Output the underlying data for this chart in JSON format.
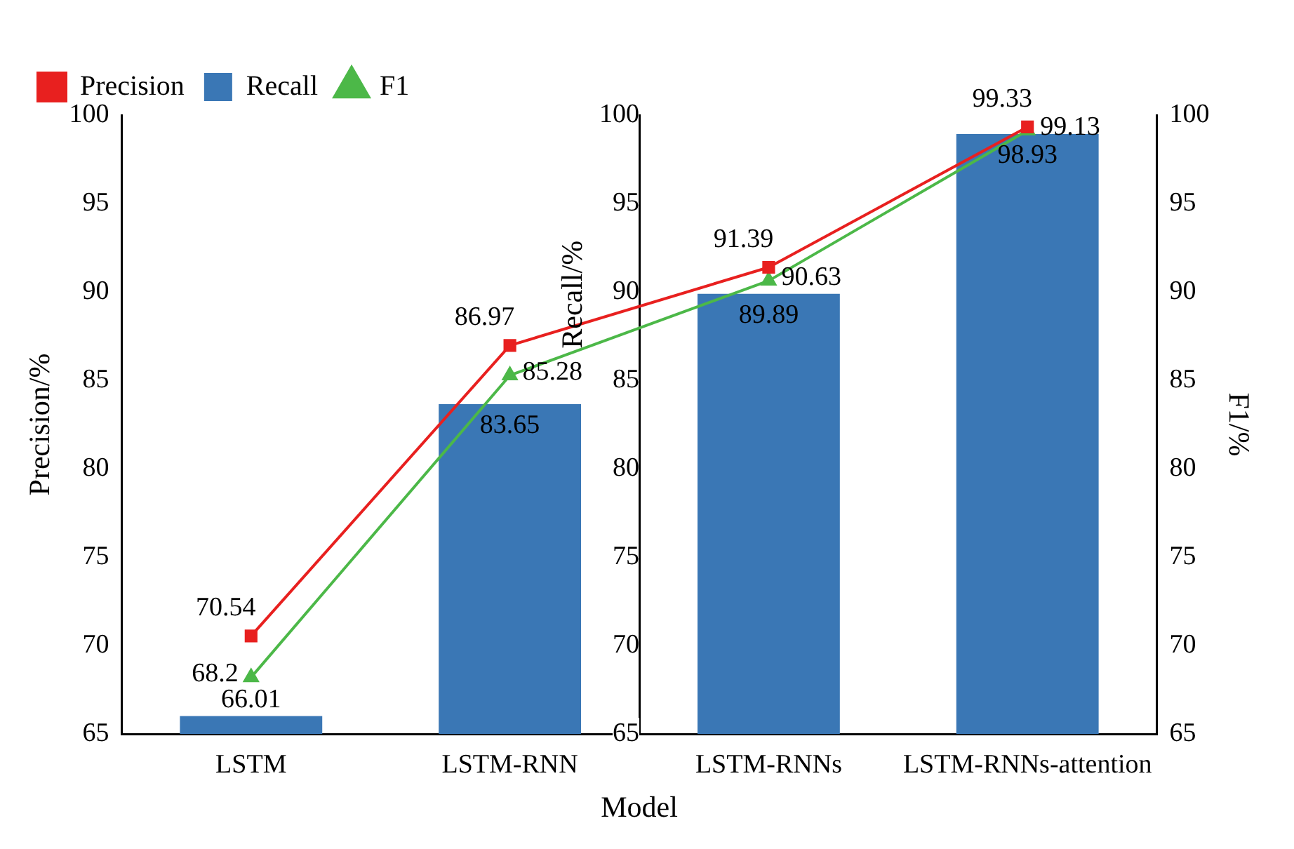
{
  "chart_data": {
    "type": "bar",
    "xlabel": "Model",
    "ylabel": "Precision/%",
    "y2label": "F1/%",
    "y3label": "Recall/%",
    "categories": [
      "LSTM",
      "LSTM-RNN",
      "LSTM-RNNs",
      "LSTM-RNNs-attention"
    ],
    "series": [
      {
        "name": "Precision",
        "type": "line",
        "color": "#e8201f",
        "marker": "square",
        "values": [
          70.54,
          86.97,
          91.39,
          99.33
        ]
      },
      {
        "name": "Recall",
        "axis": "y3",
        "color": "#3a77b5",
        "values": [
          66.01,
          83.65,
          89.89,
          98.93
        ]
      },
      {
        "name": "F1",
        "type": "line",
        "axis": "y2",
        "color": "#4cb848",
        "marker": "triangle",
        "values": [
          68.2,
          85.28,
          90.63,
          99.13
        ]
      }
    ],
    "ylim": [
      65,
      100
    ],
    "yticks": [
      65,
      70,
      75,
      80,
      85,
      90,
      95,
      100
    ],
    "y2lim": [
      65,
      100
    ],
    "y2ticks": [
      65,
      70,
      75,
      80,
      85,
      90,
      95,
      100
    ],
    "y3lim": [
      65,
      100
    ],
    "y3ticks": [
      65,
      70,
      75,
      80,
      85,
      90,
      95,
      100
    ],
    "data_labels": true,
    "legend": "top left",
    "grid": false
  }
}
